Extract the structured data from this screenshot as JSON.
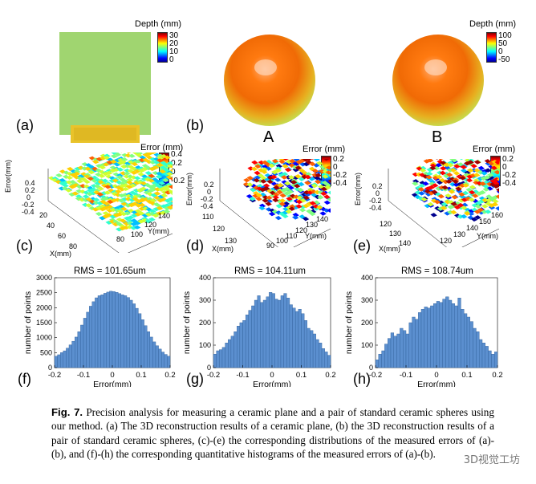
{
  "panels": {
    "a": "(a)",
    "b": "(b)",
    "c": "(c)",
    "d": "(d)",
    "e": "(e)",
    "f": "(f)",
    "g": "(g)",
    "h": "(h)"
  },
  "sphere_labels": {
    "A": "A",
    "B": "B"
  },
  "colorbars": {
    "plane": {
      "title": "Depth (mm)",
      "ticks": [
        "30",
        "20",
        "10",
        "0"
      ]
    },
    "spheres": {
      "title": "Depth (mm)",
      "ticks": [
        "100",
        "50",
        "0",
        "-50"
      ]
    },
    "err_c": {
      "title": "Error (mm)",
      "ticks": [
        "0.4",
        "0.2",
        "0",
        "-0.2"
      ]
    },
    "err_d": {
      "title": "Error (mm)",
      "ticks": [
        "0.2",
        "0",
        "-0.2",
        "-0.4"
      ]
    },
    "err_e": {
      "title": "Error (mm)",
      "ticks": [
        "0.2",
        "0",
        "-0.2",
        "-0.4"
      ]
    }
  },
  "surfaces": {
    "c": {
      "zlabel": "Error(mm)",
      "xlabel": "X(mm)",
      "ylabel": "Y(mm)",
      "zticks": [
        "0.4",
        "0.2",
        "0",
        "-0.2",
        "-0.4"
      ],
      "xticks": [
        "20",
        "40",
        "60",
        "80"
      ],
      "yticks": [
        "80",
        "100",
        "120",
        "140"
      ]
    },
    "d": {
      "zlabel": "Error(mm)",
      "xlabel": "X(mm)",
      "ylabel": "Y(mm)",
      "zticks": [
        "0.2",
        "0",
        "-0.2",
        "-0.4"
      ],
      "xticks": [
        "110",
        "120",
        "130"
      ],
      "yticks": [
        "90",
        "100",
        "110",
        "120",
        "130",
        "140"
      ]
    },
    "e": {
      "zlabel": "Error(mm)",
      "xlabel": "X(mm)",
      "ylabel": "Y(mm)",
      "zticks": [
        "0.2",
        "0",
        "-0.2",
        "-0.4"
      ],
      "xticks": [
        "120",
        "130",
        "140"
      ],
      "yticks": [
        "120",
        "130",
        "140",
        "150",
        "160"
      ]
    }
  },
  "chart_data": [
    {
      "type": "bar",
      "title": "RMS = 101.65um",
      "xlabel": "Error(mm)",
      "ylabel": "number of points",
      "xlim": [
        -0.2,
        0.2
      ],
      "ylim": [
        0,
        3000
      ],
      "xticks": [
        "-0.2",
        "-0.1",
        "0",
        "0.1",
        "0.2"
      ],
      "yticks": [
        "0",
        "500",
        "1000",
        "1500",
        "2000",
        "2500",
        "3000"
      ],
      "bin_width": 0.01,
      "values": [
        380,
        430,
        500,
        560,
        650,
        760,
        880,
        1020,
        1200,
        1420,
        1650,
        1850,
        2050,
        2200,
        2330,
        2400,
        2430,
        2480,
        2520,
        2550,
        2540,
        2510,
        2470,
        2430,
        2400,
        2340,
        2250,
        2130,
        1980,
        1800,
        1600,
        1400,
        1200,
        1020,
        860,
        730,
        620,
        520,
        440,
        380
      ]
    },
    {
      "type": "bar",
      "title": "RMS = 104.11um",
      "xlabel": "Error(mm)",
      "ylabel": "number of points",
      "xlim": [
        -0.2,
        0.2
      ],
      "ylim": [
        0,
        400
      ],
      "xticks": [
        "-0.2",
        "-0.1",
        "0",
        "0.1",
        "0.2"
      ],
      "yticks": [
        "0",
        "100",
        "200",
        "300",
        "400"
      ],
      "bin_width": 0.01,
      "values": [
        60,
        75,
        80,
        90,
        110,
        125,
        140,
        160,
        185,
        200,
        210,
        235,
        255,
        275,
        300,
        320,
        290,
        300,
        315,
        335,
        330,
        305,
        300,
        320,
        330,
        310,
        280,
        265,
        250,
        260,
        240,
        210,
        175,
        165,
        150,
        125,
        110,
        85,
        70,
        55
      ]
    },
    {
      "type": "bar",
      "title": "RMS = 108.74um",
      "xlabel": "Error(mm)",
      "ylabel": "number of points",
      "xlim": [
        -0.2,
        0.2
      ],
      "ylim": [
        0,
        400
      ],
      "xticks": [
        "-0.2",
        "-0.1",
        "0",
        "0.1",
        "0.2"
      ],
      "yticks": [
        "0",
        "100",
        "200",
        "300",
        "400"
      ],
      "bin_width": 0.01,
      "values": [
        35,
        60,
        75,
        105,
        130,
        155,
        140,
        150,
        175,
        165,
        150,
        200,
        225,
        215,
        245,
        260,
        270,
        265,
        275,
        285,
        295,
        290,
        305,
        315,
        300,
        285,
        275,
        310,
        260,
        240,
        225,
        205,
        175,
        160,
        125,
        110,
        95,
        75,
        60,
        70
      ]
    }
  ],
  "caption": {
    "label": "Fig. 7.",
    "text": " Precision analysis for measuring a ceramic plane and a pair of standard ceramic spheres using our method. (a) The 3D reconstruction results of a ceramic plane, (b) the 3D reconstruction results of a pair of standard ceramic spheres, (c)-(e) the corresponding distributions of the measured errors of (a)-(b), and (f)-(h) the corresponding quantitative histograms of the measured errors of (a)-(b)."
  },
  "watermark": "3D视觉工坊",
  "colors": {
    "bar": "#5b8fcf",
    "bar_edge": "#2f5f9a",
    "accent": "#000000"
  }
}
